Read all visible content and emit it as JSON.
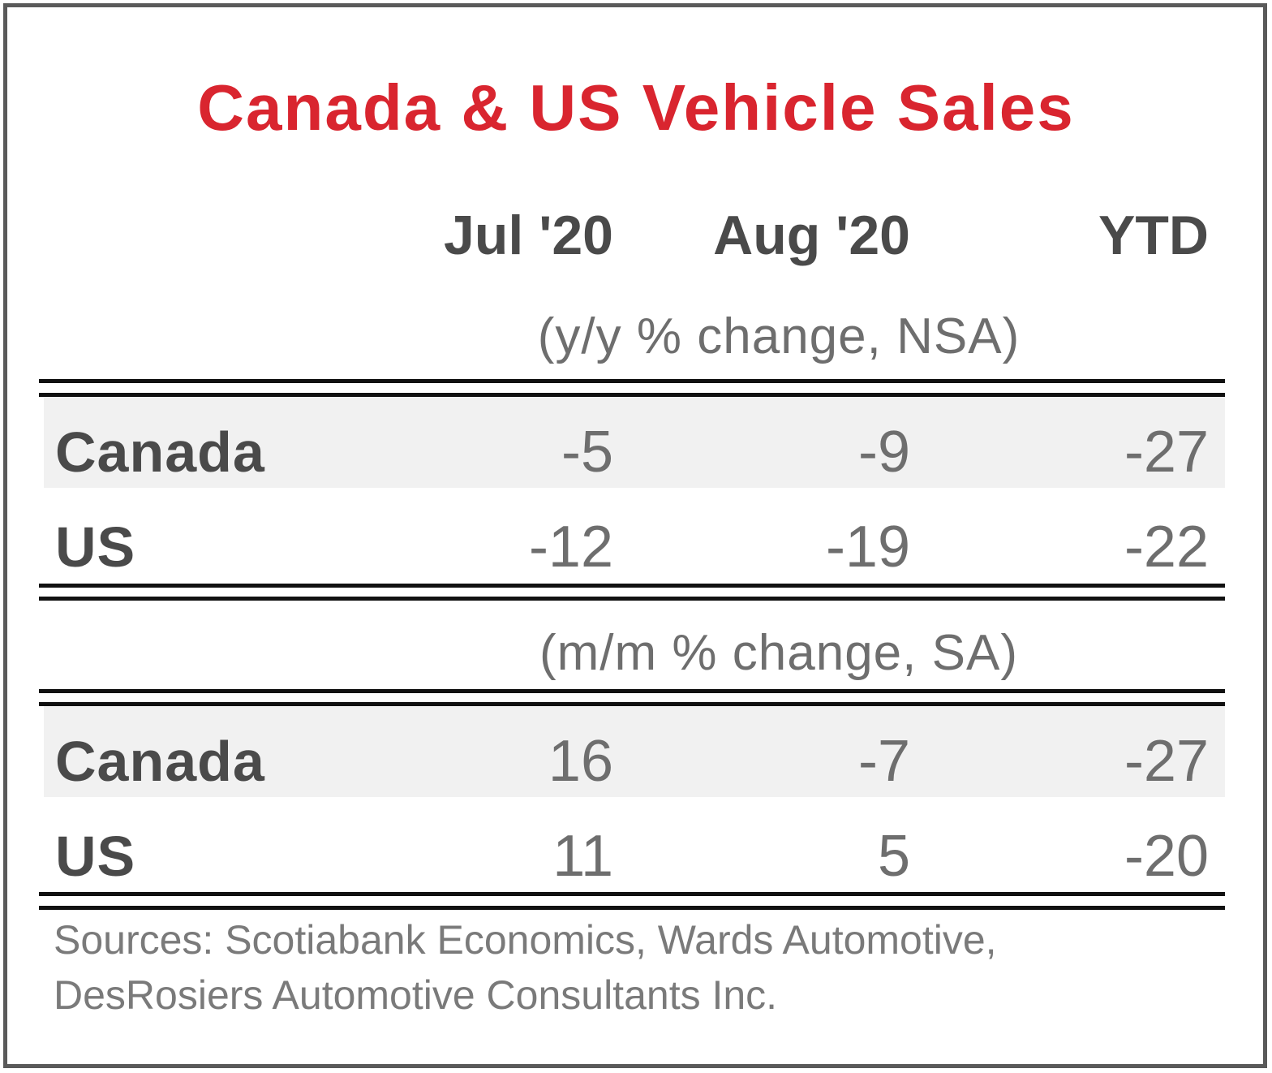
{
  "chart_data": {
    "type": "table",
    "title": "Canada & US Vehicle Sales",
    "columns": [
      "Jul '20",
      "Aug '20",
      "YTD"
    ],
    "sections": [
      {
        "label": "(y/y % change, NSA)",
        "rows": [
          {
            "name": "Canada",
            "values": [
              "-5",
              "-9",
              "-27"
            ]
          },
          {
            "name": "US",
            "values": [
              "-12",
              "-19",
              "-22"
            ]
          }
        ]
      },
      {
        "label": "(m/m % change, SA)",
        "rows": [
          {
            "name": "Canada",
            "values": [
              "16",
              "-7",
              "-27"
            ]
          },
          {
            "name": "US",
            "values": [
              "11",
              "5",
              "-20"
            ]
          }
        ]
      }
    ]
  },
  "footer": {
    "sources_line1": "Sources: Scotiabank Economics, Wards Automotive,",
    "sources_line2": "DesRosiers Automotive Consultants Inc."
  },
  "colors": {
    "title": "#d9252f",
    "text": "#4a4a4a",
    "values": "#6e6e6e",
    "row_shade": "#f1f1f1"
  }
}
